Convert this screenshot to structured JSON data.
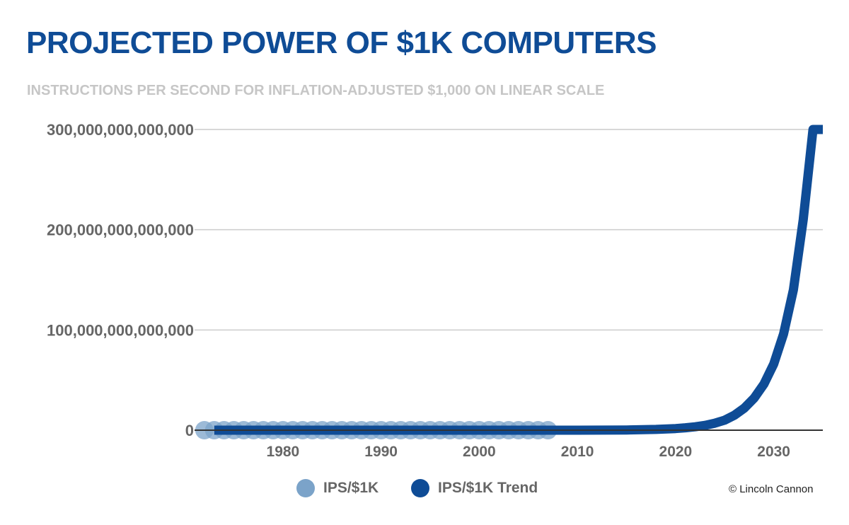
{
  "chart_data": {
    "type": "scatter+line",
    "title": "PROJECTED POWER OF $1K COMPUTERS",
    "subtitle": "INSTRUCTIONS PER SECOND FOR INFLATION-ADJUSTED $1,000 ON LINEAR SCALE",
    "xlabel": "",
    "ylabel": "",
    "xlim": [
      1971,
      2035
    ],
    "ylim": [
      0,
      300000000000000
    ],
    "x_ticks": [
      1980,
      1990,
      2000,
      2010,
      2020,
      2030
    ],
    "x_tick_labels": [
      "1980",
      "1990",
      "2000",
      "2010",
      "2020",
      "2030"
    ],
    "y_ticks": [
      0,
      100000000000000,
      200000000000000,
      300000000000000
    ],
    "y_tick_labels": [
      "0",
      "100,000,000,000,000",
      "200,000,000,000,000",
      "300,000,000,000,000"
    ],
    "grid": true,
    "legend_position": "bottom",
    "colors": {
      "title": "#0f4c96",
      "subtitle": "#c6c6c6",
      "axis_text": "#666666",
      "grid": "#cccccc",
      "points": "#7ba3c9",
      "trend": "#0f4c96"
    },
    "series": [
      {
        "name": "IPS/$1K",
        "style": "points",
        "x": [
          1972,
          1973,
          1974,
          1975,
          1976,
          1977,
          1978,
          1979,
          1980,
          1981,
          1982,
          1983,
          1984,
          1985,
          1986,
          1987,
          1988,
          1989,
          1990,
          1991,
          1992,
          1993,
          1994,
          1995,
          1996,
          1997,
          1998,
          1999,
          2000,
          2001,
          2002,
          2003,
          2004,
          2005,
          2006,
          2007
        ],
        "y": [
          0,
          0,
          0,
          0,
          0,
          0,
          0,
          0,
          0,
          0,
          0,
          0,
          0,
          0,
          0,
          0,
          0,
          0,
          0,
          0,
          0,
          0,
          0,
          0,
          0,
          0,
          0,
          0,
          0,
          0,
          0,
          0,
          0,
          0,
          0,
          0
        ]
      },
      {
        "name": "IPS/$1K Trend",
        "style": "line",
        "x": [
          1973,
          2005,
          2010,
          2015,
          2018,
          2020,
          2021,
          2022,
          2023,
          2024,
          2025,
          2026,
          2027,
          2028,
          2029,
          2030,
          2031,
          2032,
          2033,
          2034,
          2035
        ],
        "y": [
          0,
          0,
          0,
          200000000000,
          800000000000,
          1600000000000,
          2400000000000,
          3400000000000,
          4800000000000,
          7000000000000,
          10000000000000,
          15000000000000,
          22000000000000,
          32000000000000,
          46000000000000,
          66000000000000,
          96000000000000,
          140000000000000,
          210000000000000,
          300000000000000,
          300000000000000
        ]
      }
    ],
    "credit": "© Lincoln Cannon"
  }
}
